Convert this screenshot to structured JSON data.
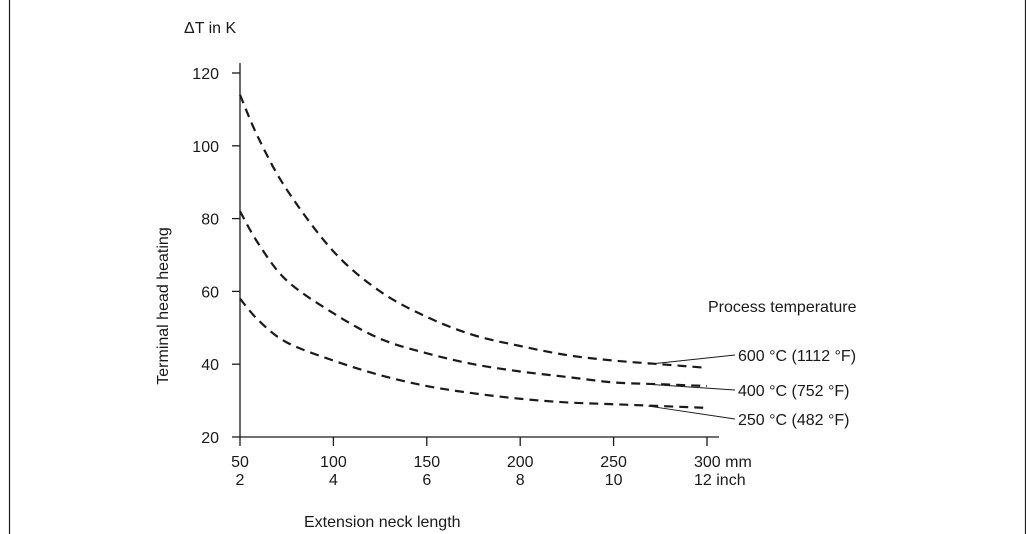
{
  "chart_data": {
    "type": "line",
    "ylabel_top": "ΔT in K",
    "ylabel": "Terminal head heating",
    "xlabel": "Extension neck length",
    "legend_title": "Process temperature",
    "ylim": [
      20,
      120
    ],
    "yticks": [
      20,
      40,
      60,
      80,
      100,
      120
    ],
    "xlim": [
      50,
      300
    ],
    "xticks": [
      {
        "value": 50,
        "mm": "50",
        "inch": "2"
      },
      {
        "value": 100,
        "mm": "100",
        "inch": "4"
      },
      {
        "value": 150,
        "mm": "150",
        "inch": "6"
      },
      {
        "value": 200,
        "mm": "200",
        "inch": "8"
      },
      {
        "value": 250,
        "mm": "250",
        "inch": "10"
      },
      {
        "value": 300,
        "mm": "300 mm",
        "inch": "12 inch"
      }
    ],
    "grid": false,
    "line_style": "dashed",
    "series": [
      {
        "name": "600 °C (1112 °F)",
        "x": [
          50,
          60,
          75,
          100,
          125,
          150,
          175,
          200,
          225,
          250,
          275,
          300
        ],
        "y": [
          114,
          102,
          88,
          71,
          60,
          53,
          48,
          45,
          42.5,
          41,
          40,
          39
        ]
      },
      {
        "name": "400 °C (752 °F)",
        "x": [
          50,
          60,
          75,
          100,
          125,
          150,
          175,
          200,
          225,
          250,
          275,
          300
        ],
        "y": [
          82,
          73,
          63,
          54,
          47,
          43,
          40,
          38,
          36.5,
          35,
          34.5,
          34
        ]
      },
      {
        "name": "250 °C (482 °F)",
        "x": [
          50,
          60,
          75,
          100,
          125,
          150,
          175,
          200,
          225,
          250,
          275,
          300
        ],
        "y": [
          58,
          52,
          46,
          41,
          37,
          34,
          32,
          30.5,
          29.5,
          29,
          28.5,
          28
        ]
      }
    ]
  }
}
